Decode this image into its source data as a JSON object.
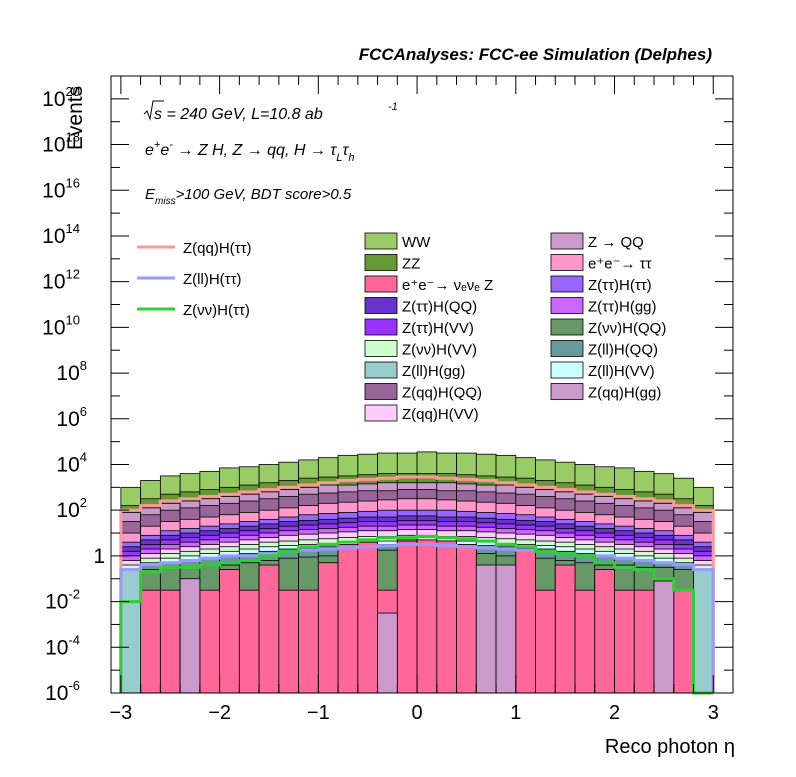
{
  "chart_data": {
    "type": "bar",
    "header": "FCCAnalyses: FCC-ee Simulation (Delphes)",
    "xlabel": "Reco photon η",
    "ylabel": "Events",
    "y_scale": "log",
    "xlim": [
      -3.1,
      3.2
    ],
    "ylim_log10": [
      -6,
      21
    ],
    "x_ticks": [
      "−3",
      "−2",
      "−1",
      "0",
      "1",
      "2",
      "3"
    ],
    "y_ticks": [
      "10^-6",
      "10^-4",
      "10^-2",
      "1",
      "10^2",
      "10^4",
      "10^6",
      "10^8",
      "10^10",
      "10^12",
      "10^14",
      "10^16",
      "10^18",
      "10^20"
    ],
    "annotations": [
      "√s = 240 GeV, L=10.8 ab⁻¹",
      "e⁺e⁻ → Z H, Z → qq, H → τ_L τ_h",
      "E_miss>100 GeV, BDT score>0.5"
    ],
    "bin_edges": [
      -3.0,
      -2.8,
      -2.6,
      -2.4,
      -2.2,
      -2.0,
      -1.8,
      -1.6,
      -1.4,
      -1.2,
      -1.0,
      -0.8,
      -0.6,
      -0.4,
      -0.2,
      0.0,
      0.2,
      0.4,
      0.6,
      0.8,
      1.0,
      1.2,
      1.4,
      1.6,
      1.8,
      2.0,
      2.2,
      2.4,
      2.6,
      2.8,
      3.0
    ],
    "stack_order_bottom_to_top": [
      "Z(ll)H(gg)",
      "Z → QQ",
      "e⁺e⁻→ ν_eν_e Z",
      "Z(νν)H(QQ)",
      "Z(ll)H(QQ)",
      "Z(ll)H(VV)",
      "Z(νν)H(VV)",
      "Z(qq)H(VV)",
      "Z(ττ)H(gg)",
      "Z(ττ)H(VV)",
      "Z(ττ)H(QQ)",
      "Z(ττ)H(ττ)",
      "e⁺e⁻→ ττ",
      "Z(qq)H(QQ)",
      "Z(qq)H(gg)",
      "ZZ",
      "WW"
    ],
    "stacked_series": [
      {
        "name": "WW",
        "color": "#99cc66",
        "cumulative_top_log10": [
          3.0,
          3.3,
          3.5,
          3.6,
          3.7,
          3.85,
          3.9,
          4.0,
          4.1,
          4.2,
          4.3,
          4.4,
          4.45,
          4.5,
          4.5,
          4.55,
          4.5,
          4.5,
          4.45,
          4.4,
          4.3,
          4.2,
          4.1,
          4.0,
          3.9,
          3.85,
          3.7,
          3.6,
          3.4,
          3.0
        ]
      },
      {
        "name": "ZZ",
        "color": "#669933",
        "cumulative_top_log10": [
          2.2,
          2.5,
          2.7,
          2.8,
          2.9,
          3.0,
          3.1,
          3.2,
          3.3,
          3.4,
          3.45,
          3.5,
          3.55,
          3.6,
          3.6,
          3.6,
          3.6,
          3.55,
          3.5,
          3.45,
          3.4,
          3.3,
          3.2,
          3.1,
          3.0,
          2.9,
          2.8,
          2.7,
          2.5,
          2.2
        ]
      },
      {
        "name": "Z(qq)H(gg)",
        "color": "#cc99cc",
        "cumulative_top_log10": [
          1.9,
          2.1,
          2.3,
          2.4,
          2.5,
          2.6,
          2.7,
          2.8,
          2.9,
          3.0,
          3.1,
          3.1,
          3.15,
          3.2,
          3.2,
          3.2,
          3.2,
          3.15,
          3.1,
          3.1,
          3.0,
          2.9,
          2.8,
          2.7,
          2.6,
          2.5,
          2.4,
          2.3,
          2.1,
          1.9
        ]
      },
      {
        "name": "Z(qq)H(QQ)",
        "color": "#996699",
        "cumulative_top_log10": [
          1.5,
          1.8,
          2.0,
          2.1,
          2.2,
          2.3,
          2.4,
          2.5,
          2.6,
          2.7,
          2.75,
          2.8,
          2.85,
          2.85,
          2.9,
          2.9,
          2.85,
          2.85,
          2.8,
          2.75,
          2.7,
          2.6,
          2.5,
          2.4,
          2.3,
          2.2,
          2.1,
          2.0,
          1.8,
          1.5
        ]
      },
      {
        "name": "e⁺e⁻→ ττ",
        "color": "#ff99cc",
        "cumulative_top_log10": [
          1.0,
          1.3,
          1.5,
          1.6,
          1.7,
          1.8,
          1.9,
          2.0,
          2.1,
          2.2,
          2.3,
          2.35,
          2.4,
          2.45,
          2.5,
          2.5,
          2.45,
          2.4,
          2.35,
          2.3,
          2.2,
          2.1,
          2.0,
          1.9,
          1.8,
          1.7,
          1.6,
          1.5,
          1.3,
          1.0
        ]
      },
      {
        "name": "Z(ττ)H(ττ)",
        "color": "#9966ff",
        "cumulative_top_log10": [
          0.6,
          0.9,
          1.1,
          1.2,
          1.3,
          1.4,
          1.5,
          1.6,
          1.7,
          1.8,
          1.85,
          1.9,
          1.95,
          2.0,
          2.0,
          2.0,
          2.0,
          1.95,
          1.9,
          1.85,
          1.8,
          1.7,
          1.6,
          1.5,
          1.4,
          1.3,
          1.2,
          1.1,
          0.9,
          0.6
        ]
      },
      {
        "name": "Z(ττ)H(QQ)",
        "color": "#6633cc",
        "cumulative_top_log10": [
          0.4,
          0.7,
          0.9,
          1.0,
          1.1,
          1.2,
          1.3,
          1.4,
          1.5,
          1.55,
          1.6,
          1.65,
          1.7,
          1.7,
          1.75,
          1.75,
          1.7,
          1.7,
          1.65,
          1.6,
          1.55,
          1.5,
          1.4,
          1.3,
          1.2,
          1.1,
          1.0,
          0.9,
          0.7,
          0.4
        ]
      },
      {
        "name": "Z(ττ)H(VV)",
        "color": "#9933ff",
        "cumulative_top_log10": [
          0.2,
          0.5,
          0.7,
          0.8,
          0.9,
          1.0,
          1.1,
          1.2,
          1.3,
          1.35,
          1.4,
          1.45,
          1.5,
          1.5,
          1.55,
          1.55,
          1.5,
          1.5,
          1.45,
          1.4,
          1.35,
          1.3,
          1.2,
          1.1,
          1.0,
          0.9,
          0.8,
          0.7,
          0.5,
          0.2
        ]
      },
      {
        "name": "Z(ττ)H(gg)",
        "color": "#cc66ff",
        "cumulative_top_log10": [
          0.0,
          0.3,
          0.5,
          0.6,
          0.7,
          0.8,
          0.9,
          1.0,
          1.1,
          1.15,
          1.2,
          1.25,
          1.3,
          1.3,
          1.35,
          1.35,
          1.3,
          1.3,
          1.25,
          1.2,
          1.15,
          1.1,
          1.0,
          0.9,
          0.8,
          0.7,
          0.6,
          0.5,
          0.3,
          0.0
        ]
      },
      {
        "name": "Z(qq)H(VV)",
        "color": "#ffccff",
        "cumulative_top_log10": [
          -0.2,
          0.1,
          0.3,
          0.4,
          0.5,
          0.6,
          0.7,
          0.8,
          0.9,
          0.95,
          1.0,
          1.05,
          1.1,
          1.1,
          1.15,
          1.15,
          1.1,
          1.1,
          1.05,
          1.0,
          0.95,
          0.9,
          0.8,
          0.7,
          0.6,
          0.5,
          0.4,
          0.3,
          0.1,
          -0.2
        ]
      },
      {
        "name": "Z(νν)H(VV)",
        "color": "#ccffcc",
        "cumulative_top_log10": [
          -0.4,
          -0.1,
          0.1,
          0.2,
          0.3,
          0.4,
          0.5,
          0.6,
          0.65,
          0.7,
          0.75,
          0.8,
          0.85,
          0.85,
          0.9,
          0.9,
          0.85,
          0.85,
          0.8,
          0.75,
          0.7,
          0.65,
          0.6,
          0.5,
          0.4,
          0.3,
          0.2,
          0.1,
          -0.1,
          -0.4
        ]
      },
      {
        "name": "Z(ll)H(VV)",
        "color": "#ccffff",
        "cumulative_top_log10": [
          -0.6,
          -0.3,
          -0.1,
          0.0,
          0.1,
          0.2,
          0.3,
          0.4,
          0.45,
          0.5,
          0.55,
          0.6,
          0.65,
          0.65,
          0.7,
          0.7,
          0.65,
          0.65,
          0.6,
          0.55,
          0.5,
          0.45,
          0.4,
          0.3,
          0.2,
          0.1,
          0.0,
          -0.1,
          -0.3,
          -0.6
        ]
      },
      {
        "name": "Z(ll)H(QQ)",
        "color": "#669999",
        "cumulative_top_log10": [
          -0.7,
          -0.45,
          -0.3,
          -0.2,
          -0.1,
          0.0,
          0.1,
          0.2,
          0.3,
          0.35,
          0.4,
          0.45,
          0.5,
          0.5,
          0.55,
          0.55,
          0.5,
          0.5,
          0.45,
          0.4,
          0.35,
          0.3,
          0.2,
          0.1,
          0.0,
          -0.1,
          -0.2,
          -0.3,
          -0.45,
          -0.7
        ]
      },
      {
        "name": "Z(νν)H(QQ)",
        "color": "#669966",
        "cumulative_top_log10": [
          -0.8,
          -0.6,
          -0.5,
          -0.5,
          -0.4,
          -0.4,
          -0.3,
          -0.2,
          -0.1,
          -0.05,
          0.0,
          0.1,
          0.2,
          0.25,
          0.3,
          0.3,
          0.25,
          0.2,
          0.1,
          0.0,
          -0.05,
          -0.1,
          -0.2,
          -0.3,
          -0.4,
          -0.4,
          -0.5,
          -0.5,
          -0.6,
          -0.8
        ]
      },
      {
        "name": "e⁺e⁻→ ν_eν_e Z",
        "color": "#ff6699",
        "cumulative_top_log10": [
          -1.5,
          -1.5,
          -1.5,
          -1.5,
          -1.5,
          -0.6,
          -1.5,
          -0.4,
          -1.5,
          -1.5,
          -0.3,
          0.5,
          0.6,
          -1.5,
          0.65,
          0.7,
          0.65,
          0.5,
          -1.5,
          -1.5,
          0.3,
          -1.5,
          -0.4,
          -1.5,
          -0.6,
          -1.5,
          -1.5,
          -1.5,
          -1.5,
          -1.5
        ]
      },
      {
        "name": "Z → QQ",
        "color": "#cc99cc",
        "cumulative_top_log10": [
          -6,
          -6,
          -6,
          -1.0,
          -6,
          -6,
          -6,
          -6,
          -6,
          -6,
          -6,
          -6,
          -6,
          -2.5,
          -6,
          -6,
          -6,
          -6,
          -0.4,
          -0.4,
          -6,
          -6,
          -6,
          -6,
          -6,
          -6,
          -6,
          -1.1,
          -6,
          -6
        ]
      },
      {
        "name": "Z(ll)H(gg)",
        "color": "#99cccc",
        "cumulative_top_log10": [
          -0.6,
          -6,
          -6,
          -6,
          -6,
          -6,
          -6,
          -6,
          -6,
          -6,
          -6,
          -6,
          -6,
          -6,
          -6,
          -6,
          -6,
          -6,
          -6,
          -6,
          -6,
          -6,
          -6,
          -6,
          -6,
          -6,
          -6,
          -6,
          -6,
          -0.6
        ]
      }
    ],
    "line_series": [
      {
        "name": "Z(qq)H(ττ)",
        "color": "#ff9999",
        "values_log10": [
          2.0,
          2.2,
          2.4,
          2.5,
          2.6,
          2.7,
          2.8,
          2.9,
          3.0,
          3.1,
          3.2,
          3.3,
          3.35,
          3.4,
          3.45,
          3.45,
          3.4,
          3.35,
          3.3,
          3.2,
          3.1,
          3.0,
          2.9,
          2.8,
          2.7,
          2.6,
          2.5,
          2.4,
          2.2,
          2.0
        ]
      },
      {
        "name": "Z(ll)H(ττ)",
        "color": "#9999ff",
        "values_log10": [
          -0.6,
          -0.4,
          -0.3,
          -0.2,
          -0.1,
          0.0,
          0.0,
          0.1,
          0.2,
          0.25,
          0.3,
          0.35,
          0.4,
          0.45,
          0.5,
          0.5,
          0.45,
          0.4,
          0.35,
          0.3,
          0.25,
          0.2,
          0.1,
          0.0,
          0.0,
          -0.1,
          -0.2,
          -0.3,
          -0.4,
          -0.6
        ]
      },
      {
        "name": "Z(νν)H(ττ)",
        "color": "#33cc33",
        "values_log10": [
          -2.0,
          -0.7,
          -0.5,
          -0.5,
          -0.4,
          -0.3,
          -0.2,
          0.0,
          0.2,
          0.4,
          0.5,
          0.6,
          0.7,
          0.8,
          0.8,
          0.85,
          0.8,
          0.75,
          0.65,
          0.5,
          0.4,
          0.2,
          0.1,
          0.0,
          -0.3,
          -0.5,
          -0.6,
          -1.0,
          -1.5,
          -6
        ]
      }
    ],
    "legend_lines": [
      {
        "label": "Z(qq)H(ττ)",
        "color": "#ff9999"
      },
      {
        "label": "Z(ll)H(ττ)",
        "color": "#9999ff"
      },
      {
        "label": "Z(νν)H(ττ)",
        "color": "#33cc33"
      }
    ],
    "legend_boxes_col1": [
      {
        "label": "WW",
        "color": "#99cc66"
      },
      {
        "label": "ZZ",
        "color": "#669933"
      },
      {
        "label": "e⁺e⁻→ νₑνₑ Z",
        "color": "#ff6699"
      },
      {
        "label": "Z(ττ)H(QQ)",
        "color": "#6633cc"
      },
      {
        "label": "Z(ττ)H(VV)",
        "color": "#9933ff"
      },
      {
        "label": "Z(νν)H(VV)",
        "color": "#ccffcc"
      },
      {
        "label": "Z(ll)H(gg)",
        "color": "#99cccc"
      },
      {
        "label": "Z(qq)H(QQ)",
        "color": "#996699"
      },
      {
        "label": "Z(qq)H(VV)",
        "color": "#ffccff"
      }
    ],
    "legend_boxes_col2": [
      {
        "label": "Z → QQ",
        "color": "#cc99cc"
      },
      {
        "label": "e⁺e⁻→ ττ",
        "color": "#ff99cc"
      },
      {
        "label": "Z(ττ)H(ττ)",
        "color": "#9966ff"
      },
      {
        "label": "Z(ττ)H(gg)",
        "color": "#cc66ff"
      },
      {
        "label": "Z(νν)H(QQ)",
        "color": "#669966"
      },
      {
        "label": "Z(ll)H(QQ)",
        "color": "#669999"
      },
      {
        "label": "Z(ll)H(VV)",
        "color": "#ccffff"
      },
      {
        "label": "Z(qq)H(gg)",
        "color": "#cc99cc"
      }
    ]
  }
}
